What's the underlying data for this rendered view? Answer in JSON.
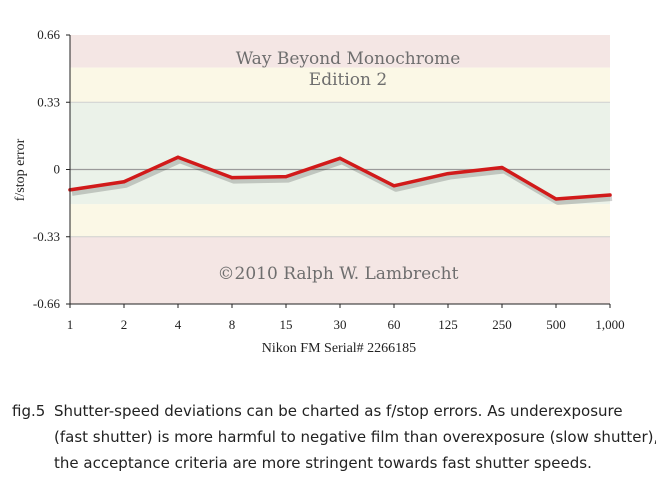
{
  "chart_data": {
    "type": "line",
    "ylabel": "f/stop error",
    "xlabel": "Nikon FM Serial# 2266185",
    "categories": [
      "1",
      "2",
      "4",
      "8",
      "15",
      "30",
      "60",
      "125",
      "250",
      "500",
      "1,000"
    ],
    "ytick_labels": [
      "0.66",
      "0.33",
      "0",
      "-0.33",
      "-0.66"
    ],
    "yticks": [
      0.66,
      0.33,
      0,
      -0.33,
      -0.66
    ],
    "ylim": [
      -0.66,
      0.66
    ],
    "series": [
      {
        "values": [
          -0.1,
          -0.06,
          0.06,
          -0.04,
          -0.035,
          0.055,
          -0.08,
          -0.02,
          0.01,
          -0.145,
          -0.125
        ]
      }
    ],
    "bands": [
      {
        "from": 0.5,
        "to": 0.66,
        "color": "#f4e6e4"
      },
      {
        "from": 0.33,
        "to": 0.5,
        "color": "#fbf8e6"
      },
      {
        "from": -0.17,
        "to": 0.33,
        "color": "#ebf2e9"
      },
      {
        "from": -0.33,
        "to": -0.17,
        "color": "#fbf8e6"
      },
      {
        "from": -0.66,
        "to": -0.33,
        "color": "#f4e6e4"
      }
    ],
    "line_color": "#d11a1a",
    "watermark_title": "Way Beyond Monochrome",
    "watermark_edition": "Edition 2",
    "watermark_copyright": "©2010   Ralph W. Lambrecht"
  },
  "caption": {
    "fig_number": "fig.5",
    "line1": "Shutter-speed deviations can be charted as f/stop errors. As underexposure",
    "line2": "(fast shutter) is more harmful to negative film than overexposure (slow shutter),",
    "line3": "the acceptance criteria are more stringent towards fast shutter speeds."
  }
}
